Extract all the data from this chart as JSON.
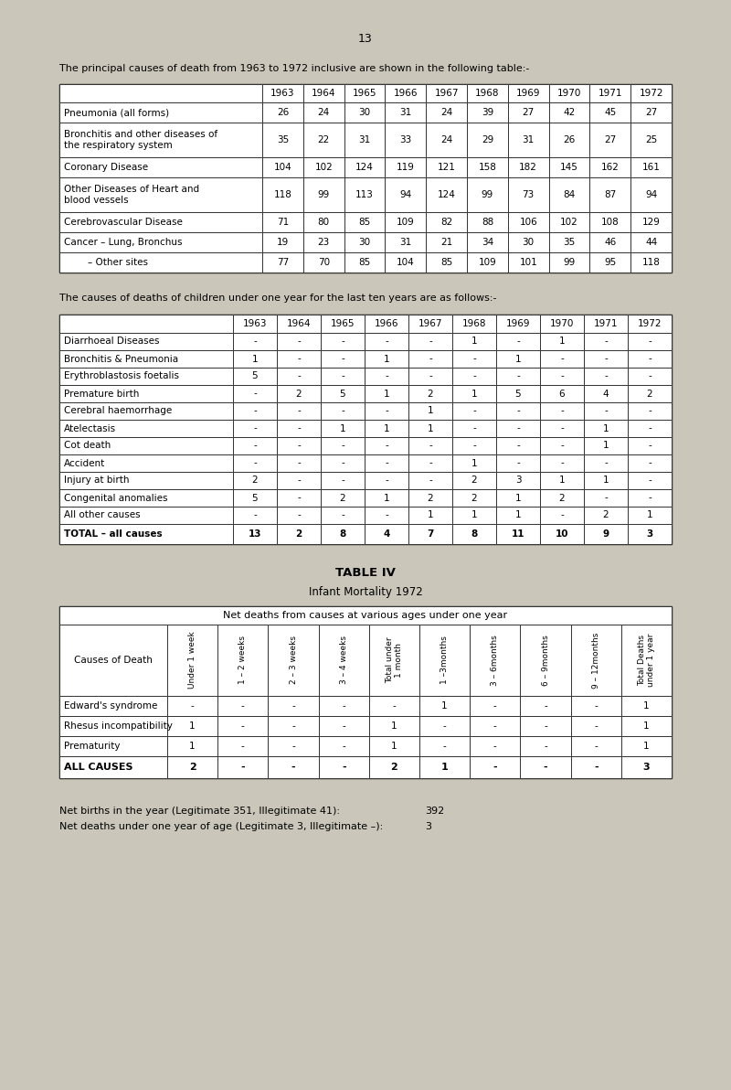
{
  "bg_color": "#cac6ba",
  "page_number": "13",
  "intro1": "The principal causes of death from 1963 to 1972 inclusive are shown in the following table:-",
  "table1_years": [
    "1963",
    "1964",
    "1965",
    "1966",
    "1967",
    "1968",
    "1969",
    "1970",
    "1971",
    "1972"
  ],
  "table1_rows": [
    {
      "label": "Pneumonia (all forms)",
      "values": [
        "26",
        "24",
        "30",
        "31",
        "24",
        "39",
        "27",
        "42",
        "45",
        "27"
      ],
      "two_line": false
    },
    {
      "label": "Bronchitis and other diseases of\nthe respiratory system",
      "values": [
        "35",
        "22",
        "31",
        "33",
        "24",
        "29",
        "31",
        "26",
        "27",
        "25"
      ],
      "two_line": true
    },
    {
      "label": "Coronary Disease",
      "values": [
        "104",
        "102",
        "124",
        "119",
        "121",
        "158",
        "182",
        "145",
        "162",
        "161"
      ],
      "two_line": false
    },
    {
      "label": "Other Diseases of Heart and\nblood vessels",
      "values": [
        "118",
        "99",
        "113",
        "94",
        "124",
        "99",
        "73",
        "84",
        "87",
        "94"
      ],
      "two_line": true
    },
    {
      "label": "Cerebrovascular Disease",
      "values": [
        "71",
        "80",
        "85",
        "109",
        "82",
        "88",
        "106",
        "102",
        "108",
        "129"
      ],
      "two_line": false
    },
    {
      "label": "Cancer – Lung, Bronchus",
      "values": [
        "19",
        "23",
        "30",
        "31",
        "21",
        "34",
        "30",
        "35",
        "46",
        "44"
      ],
      "two_line": false
    },
    {
      "label": "        – Other sites",
      "values": [
        "77",
        "70",
        "85",
        "104",
        "85",
        "109",
        "101",
        "99",
        "95",
        "118"
      ],
      "two_line": false
    }
  ],
  "intro2": "The causes of deaths of children under one year for the last ten years are as follows:-",
  "table2_years": [
    "1963",
    "1964",
    "1965",
    "1966",
    "1967",
    "1968",
    "1969",
    "1970",
    "1971",
    "1972"
  ],
  "table2_rows": [
    {
      "label": "Diarrhoeal Diseases",
      "values": [
        "-",
        "-",
        "-",
        "-",
        "-",
        "1",
        "-",
        "1",
        "-",
        "-"
      ]
    },
    {
      "label": "Bronchitis & Pneumonia",
      "values": [
        "1",
        "-",
        "-",
        "1",
        "-",
        "-",
        "1",
        "-",
        "-",
        "-"
      ]
    },
    {
      "label": "Erythroblastosis foetalis",
      "values": [
        "5",
        "-",
        "-",
        "-",
        "-",
        "-",
        "-",
        "-",
        "-",
        "-"
      ]
    },
    {
      "label": "Premature birth",
      "values": [
        "-",
        "2",
        "5",
        "1",
        "2",
        "1",
        "5",
        "6",
        "4",
        "2"
      ]
    },
    {
      "label": "Cerebral haemorrhage",
      "values": [
        "-",
        "-",
        "-",
        "-",
        "1",
        "-",
        "-",
        "-",
        "-",
        "-"
      ]
    },
    {
      "label": "Atelectasis",
      "values": [
        "-",
        "-",
        "1",
        "1",
        "1",
        "-",
        "-",
        "-",
        "1",
        "-"
      ]
    },
    {
      "label": "Cot death",
      "values": [
        "-",
        "-",
        "-",
        "-",
        "-",
        "-",
        "-",
        "-",
        "1",
        "-"
      ]
    },
    {
      "label": "Accident",
      "values": [
        "-",
        "-",
        "-",
        "-",
        "-",
        "1",
        "-",
        "-",
        "-",
        "-"
      ]
    },
    {
      "label": "Injury at birth",
      "values": [
        "2",
        "-",
        "-",
        "-",
        "-",
        "2",
        "3",
        "1",
        "1",
        "-"
      ]
    },
    {
      "label": "Congenital anomalies",
      "values": [
        "5",
        "-",
        "2",
        "1",
        "2",
        "2",
        "1",
        "2",
        "-",
        "-"
      ]
    },
    {
      "label": "All other causes",
      "values": [
        "-",
        "-",
        "-",
        "-",
        "1",
        "1",
        "1",
        "-",
        "2",
        "1"
      ]
    }
  ],
  "table2_total_label": "TOTAL – all causes",
  "table2_total": [
    "13",
    "2",
    "8",
    "4",
    "7",
    "8",
    "11",
    "10",
    "9",
    "3"
  ],
  "table3_title": "TABLE IV",
  "table3_subtitle": "Infant Mortality 1972",
  "table3_header_span": "Net deaths from causes at various ages under one year",
  "table3_col_headers": [
    "Under 1 week",
    "1 – 2 weeks",
    "2 – 3 weeks",
    "3 – 4 weeks",
    "Total under\n1 month",
    "1 –3months",
    "3 – 6months",
    "6 – 9months",
    "9 – 12months",
    "Total Deaths\nunder 1 year"
  ],
  "table3_cause_col": "Causes of Death",
  "table3_rows": [
    {
      "label": "Edward's syndrome",
      "values": [
        "-",
        "-",
        "-",
        "-",
        "-",
        "1",
        "-",
        "-",
        "-",
        "1"
      ]
    },
    {
      "label": "Rhesus incompatibility",
      "values": [
        "1",
        "-",
        "-",
        "-",
        "1",
        "-",
        "-",
        "-",
        "-",
        "1"
      ]
    },
    {
      "label": "Prematurity",
      "values": [
        "1",
        "-",
        "-",
        "-",
        "1",
        "-",
        "-",
        "-",
        "-",
        "1"
      ]
    }
  ],
  "table3_total_label": "ALL CAUSES",
  "table3_total": [
    "2",
    "-",
    "-",
    "-",
    "2",
    "1",
    "-",
    "-",
    "-",
    "3"
  ],
  "footer1": "Net births in the year (Legitimate 351, Illegitimate 41):",
  "footer1_val": "392",
  "footer2": "Net deaths under one year of age (Legitimate 3, Illegitimate –):",
  "footer2_val": "3"
}
